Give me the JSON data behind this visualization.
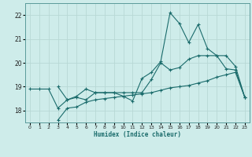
{
  "xlabel": "Humidex (Indice chaleur)",
  "bg_color": "#ceecea",
  "grid_color": "#b8d8d5",
  "line_color": "#1a6b6b",
  "ylim": [
    17.5,
    22.5
  ],
  "xlim": [
    -0.5,
    23.5
  ],
  "yticks": [
    18,
    19,
    20,
    21,
    22
  ],
  "xticks": [
    0,
    1,
    2,
    3,
    4,
    5,
    6,
    7,
    8,
    9,
    10,
    11,
    12,
    13,
    14,
    15,
    16,
    17,
    18,
    19,
    20,
    21,
    22,
    23
  ],
  "line_A_x": [
    0,
    1,
    2,
    3,
    4,
    5,
    6,
    7,
    8,
    9,
    10,
    11,
    12,
    13,
    14,
    15,
    16,
    17,
    18,
    19,
    20,
    21,
    22,
    23
  ],
  "line_A_y": [
    18.9,
    18.9,
    18.9,
    18.1,
    18.45,
    18.6,
    18.9,
    18.75,
    18.75,
    18.75,
    18.75,
    18.75,
    18.75,
    19.3,
    20.0,
    19.7,
    19.8,
    20.15,
    20.3,
    20.3,
    20.3,
    19.75,
    19.7,
    18.55
  ],
  "line_B_x": [
    3,
    4,
    5,
    6,
    7,
    8,
    9,
    10,
    11,
    12,
    13,
    14,
    15,
    16,
    17,
    18,
    19,
    20,
    21,
    22,
    23
  ],
  "line_B_y": [
    19.0,
    18.45,
    18.55,
    18.45,
    18.75,
    18.75,
    18.75,
    18.6,
    18.4,
    19.35,
    19.6,
    20.05,
    22.1,
    21.65,
    20.85,
    21.6,
    20.6,
    20.3,
    20.3,
    19.85,
    18.55
  ],
  "line_C_x": [
    3,
    4,
    5,
    6,
    7,
    8,
    9,
    10,
    11,
    12,
    13,
    14,
    15,
    16,
    17,
    18,
    19,
    20,
    21,
    22,
    23
  ],
  "line_C_y": [
    17.6,
    18.1,
    18.15,
    18.35,
    18.45,
    18.5,
    18.55,
    18.6,
    18.65,
    18.7,
    18.75,
    18.85,
    18.95,
    19.0,
    19.05,
    19.15,
    19.25,
    19.4,
    19.5,
    19.6,
    18.55
  ]
}
